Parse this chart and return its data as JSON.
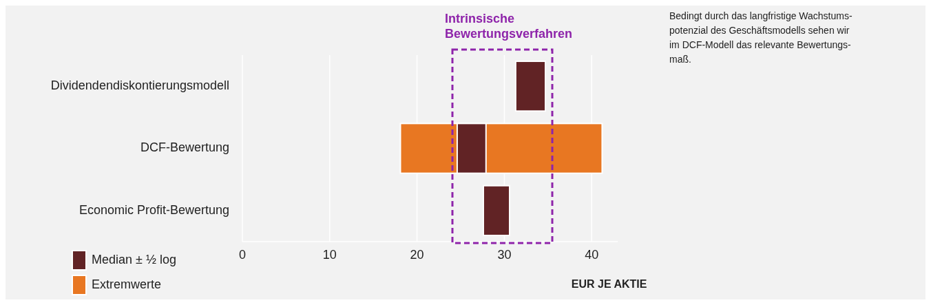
{
  "chart_data": {
    "type": "bar",
    "orientation": "horizontal",
    "categories": [
      "Dividendendiskontierungsmodell",
      "DCF-Bewertung",
      "Economic Profit-Bewertung"
    ],
    "series": [
      {
        "name": "Extremwerte",
        "color": "#e87722",
        "base": [
          null,
          18.1,
          null
        ],
        "values": [
          null,
          23.1,
          null
        ]
      },
      {
        "name": "Median ± ½ log",
        "color": "#612325",
        "base": [
          31.3,
          24.6,
          27.6
        ],
        "values": [
          3.4,
          3.3,
          3.0
        ]
      }
    ],
    "xlim": [
      0,
      43
    ],
    "xticks": [
      0,
      10,
      20,
      30,
      40
    ],
    "xlabel": "EUR JE AKTIE",
    "grid": "x",
    "legend": "bottom left",
    "annotations": [
      "Intrinsische\nBewertungsverfahren",
      "Bedingt durch das langfristige Wachstums-\npotenzial des Geschäftsmodells sehen wir\nim DCF-Modell das relevante Bewertungs-\nmaß."
    ]
  }
}
